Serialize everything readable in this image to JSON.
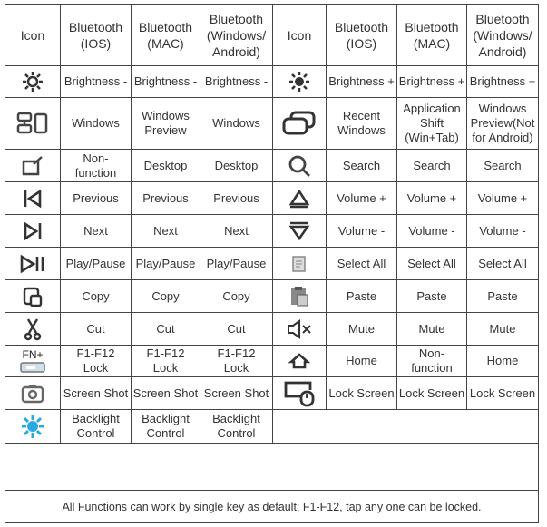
{
  "header": {
    "left": [
      "Icon",
      "Bluetooth\n(IOS)",
      "Bluetooth\n(MAC)",
      "Bluetooth\n(Windows/\nAndroid)"
    ],
    "right": [
      "Icon",
      "Bluetooth\n(IOS)",
      "Bluetooth\n(MAC)",
      "Bluetooth\n(Windows/\nAndroid)"
    ]
  },
  "rows": [
    {
      "left_icon": "brightness-down-icon",
      "left": [
        "Brightness -",
        "Brightness -",
        "Brightness -"
      ],
      "right_icon": "brightness-up-icon",
      "right": [
        "Brightness +",
        "Brightness +",
        "Brightness +"
      ]
    },
    {
      "left_icon": "windows-icon",
      "left": [
        "Windows",
        "Windows\nPreview",
        "Windows"
      ],
      "right_icon": "recent-windows-icon",
      "right": [
        "Recent\nWindows",
        "Application\nShift\n(Win+Tab)",
        "Windows\nPreview(Not\nfor Android)"
      ]
    },
    {
      "left_icon": "desktop-icon",
      "left": [
        "Non-\nfunction",
        "Desktop",
        "Desktop"
      ],
      "right_icon": "search-icon",
      "right": [
        "Search",
        "Search",
        "Search"
      ]
    },
    {
      "left_icon": "previous-icon",
      "left": [
        "Previous",
        "Previous",
        "Previous"
      ],
      "right_icon": "volume-up-icon",
      "right": [
        "Volume +",
        "Volume +",
        "Volume +"
      ]
    },
    {
      "left_icon": "next-icon",
      "left": [
        "Next",
        "Next",
        "Next"
      ],
      "right_icon": "volume-down-icon",
      "right": [
        "Volume -",
        "Volume -",
        "Volume -"
      ]
    },
    {
      "left_icon": "play-pause-icon",
      "left": [
        "Play/Pause",
        "Play/Pause",
        "Play/Pause"
      ],
      "right_icon": "select-all-icon",
      "right": [
        "Select All",
        "Select All",
        "Select All"
      ]
    },
    {
      "left_icon": "copy-icon",
      "left": [
        "Copy",
        "Copy",
        "Copy"
      ],
      "right_icon": "paste-icon",
      "right": [
        "Paste",
        "Paste",
        "Paste"
      ]
    },
    {
      "left_icon": "cut-icon",
      "left": [
        "Cut",
        "Cut",
        "Cut"
      ],
      "right_icon": "mute-icon",
      "right": [
        "Mute",
        "Mute",
        "Mute"
      ]
    },
    {
      "left_icon": "fn-lock-icon",
      "left_icon_label": "FN+",
      "left": [
        "F1-F12\nLock",
        "F1-F12\nLock",
        "F1-F12\nLock"
      ],
      "right_icon": "home-icon",
      "right": [
        "Home",
        "Non-\nfunction",
        "Home"
      ]
    },
    {
      "left_icon": "screenshot-icon",
      "left": [
        "Screen Shot",
        "Screen Shot",
        "Screen Shot"
      ],
      "right_icon": "lock-screen-icon",
      "right": [
        "Lock Screen",
        "Lock Screen",
        "Lock Screen"
      ]
    },
    {
      "left_icon": "backlight-icon",
      "left": [
        "Backlight\nControl",
        "Backlight\nControl",
        "Backlight\nControl"
      ]
    }
  ],
  "footer": "All Functions can work by single key as default; F1-F12, tap any one can be locked.",
  "colors": {
    "border": "#444444",
    "text": "#333333",
    "backlight_icon": "#29a9e1"
  }
}
